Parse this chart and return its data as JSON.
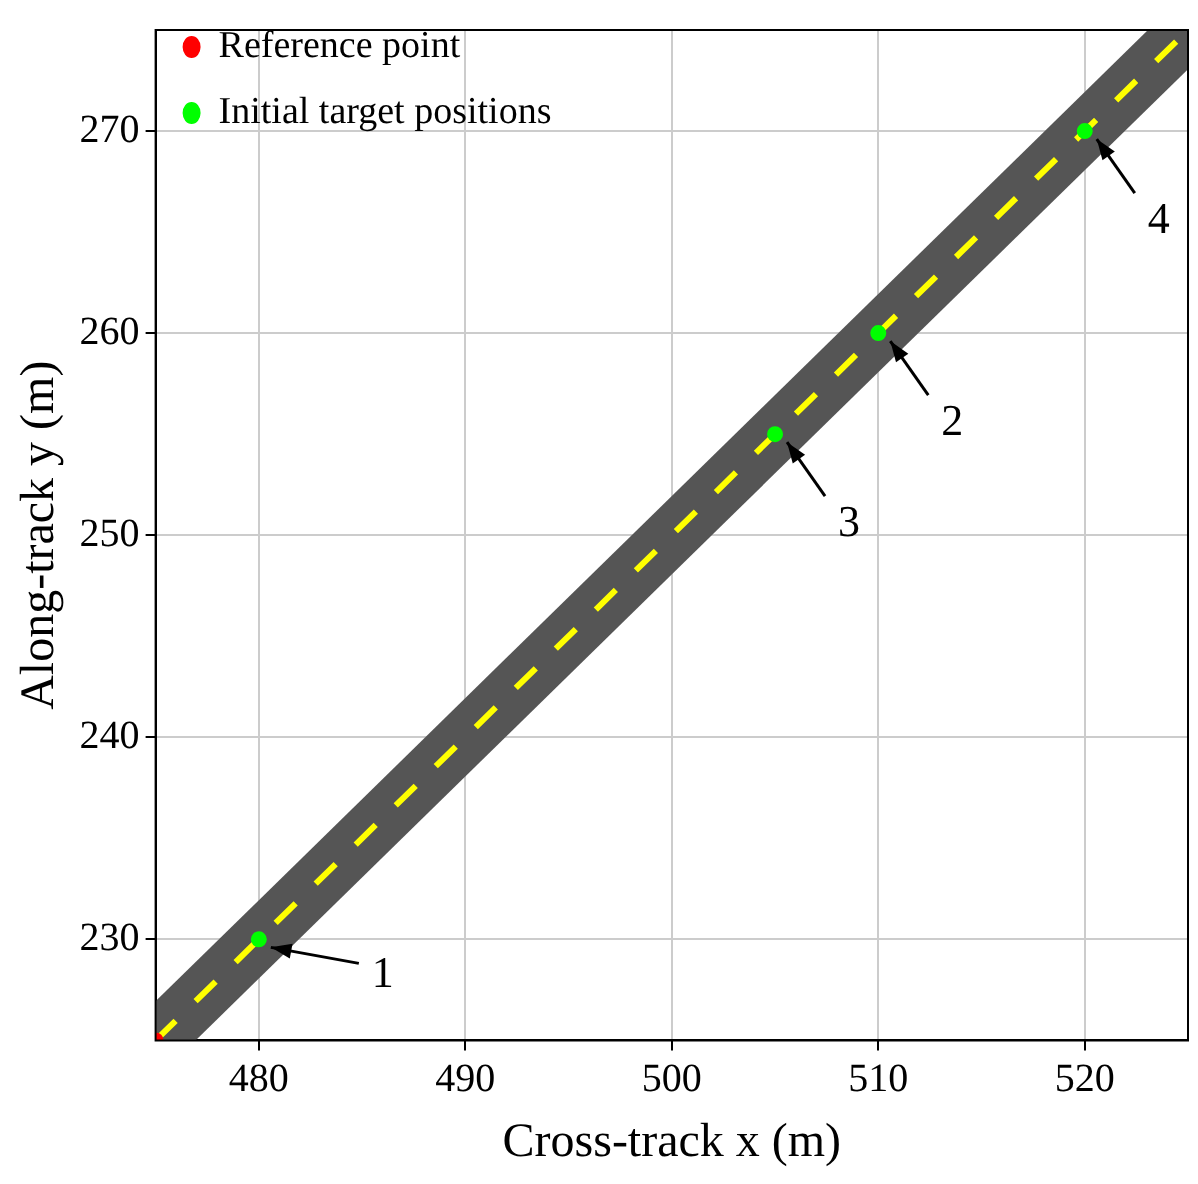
{
  "chart_data": {
    "type": "scatter",
    "xlabel": "Cross-track x (m)",
    "ylabel": "Along-track y (m)",
    "series": [
      {
        "type": "line",
        "color": "#555555",
        "marker": "none",
        "x": [
          475,
          525
        ],
        "values": [
          225,
          275
        ]
      },
      {
        "type": "line",
        "color": "#ffff00",
        "marker": "none",
        "line_style": "dashed",
        "x": [
          475,
          525
        ],
        "values": [
          225,
          275
        ]
      },
      {
        "name": "Reference point",
        "color": "#ff0000",
        "x": [
          475
        ],
        "values": [
          225
        ]
      },
      {
        "name": "Initial target positions",
        "color": "#00ff00",
        "x": [
          480,
          510,
          505,
          520
        ],
        "values": [
          230,
          260,
          255,
          270
        ]
      }
    ],
    "annotations": [
      {
        "text": "1",
        "x": 480,
        "y": 230
      },
      {
        "text": "2",
        "x": 510,
        "y": 260
      },
      {
        "text": "3",
        "x": 505,
        "y": 255
      },
      {
        "text": "4",
        "x": 520,
        "y": 270
      }
    ],
    "xlim": [
      475,
      525
    ],
    "xticks": [
      480,
      490,
      500,
      510,
      520
    ],
    "ylim": [
      225,
      275
    ],
    "yticks": [
      230,
      240,
      250,
      260,
      270
    ],
    "grid": true,
    "legend": "top left",
    "marker": "circle"
  }
}
